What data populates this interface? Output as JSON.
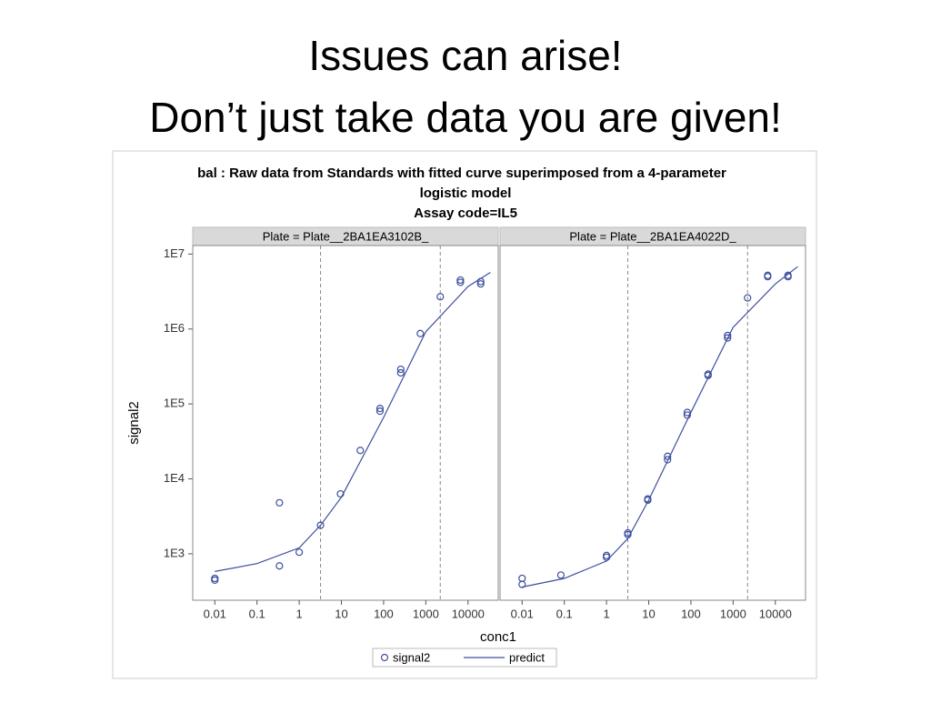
{
  "slide_title": [
    "Issues can arise!",
    "Don’t just take data you are given!"
  ],
  "chart_data": {
    "type": "scatter",
    "title": [
      "bal : Raw data from Standards with fitted curve superimposed from a 4-parameter",
      "logistic model",
      "Assay code=IL5"
    ],
    "xlabel": "conc1",
    "ylabel": "signal2",
    "xlog": true,
    "ylog": true,
    "xlim": [
      0.003,
      52000
    ],
    "ylim": [
      240,
      13000000
    ],
    "xticks": [
      0.01,
      0.1,
      1,
      10,
      100,
      1000,
      10000
    ],
    "yticks": [
      {
        "value": 1000,
        "label": "1E3"
      },
      {
        "value": 10000,
        "label": "1E4"
      },
      {
        "value": 100000,
        "label": "1E5"
      },
      {
        "value": 1000000,
        "label": "1E6"
      },
      {
        "value": 10000000,
        "label": "1E7"
      }
    ],
    "series": [
      {
        "name": "signal2",
        "color": "#3d4f9e"
      },
      {
        "name": "predict",
        "color": "#3d4f9e"
      }
    ],
    "panels": [
      {
        "label": "Plate = Plate__2BA1EA3102B_",
        "reference_lines": [
          3.2,
          2200
        ],
        "points": {
          "x": [
            0.01,
            0.01,
            0.34,
            0.34,
            1,
            3.2,
            9.5,
            28,
            82,
            82,
            255,
            255,
            740,
            2200,
            6600,
            6600,
            20000,
            20000
          ],
          "values": [
            470,
            445,
            4800,
            690,
            1050,
            2400,
            6300,
            24000,
            87000,
            80000,
            290000,
            260000,
            870000,
            2700000,
            4500000,
            4200000,
            4300000,
            4000000
          ]
        },
        "curve": {
          "x": [
            0.01,
            0.1,
            1,
            3.2,
            10,
            100,
            1000,
            10000,
            34000
          ],
          "values": [
            580,
            740,
            1200,
            2400,
            5700,
            66000,
            920000,
            3700000,
            5700000
          ]
        }
      },
      {
        "label": "Plate = Plate__2BA1EA4022D_",
        "reference_lines": [
          3.2,
          2200
        ],
        "points": {
          "x": [
            0.01,
            0.01,
            0.083,
            1,
            1,
            3.2,
            3.2,
            9.5,
            9.5,
            28,
            28,
            82,
            82,
            255,
            255,
            740,
            740,
            2200,
            6600,
            6600,
            20000,
            20000
          ],
          "values": [
            470,
            390,
            520,
            950,
            900,
            1900,
            1800,
            5400,
            5200,
            20000,
            18000,
            77000,
            71000,
            250000,
            240000,
            820000,
            760000,
            2600000,
            5200000,
            5000000,
            5200000,
            5000000
          ]
        },
        "curve": {
          "x": [
            0.01,
            0.1,
            1,
            3.2,
            10,
            100,
            1000,
            10000,
            34000
          ],
          "values": [
            360,
            470,
            800,
            1600,
            5200,
            77000,
            1050000,
            4000000,
            6800000
          ]
        }
      }
    ]
  }
}
